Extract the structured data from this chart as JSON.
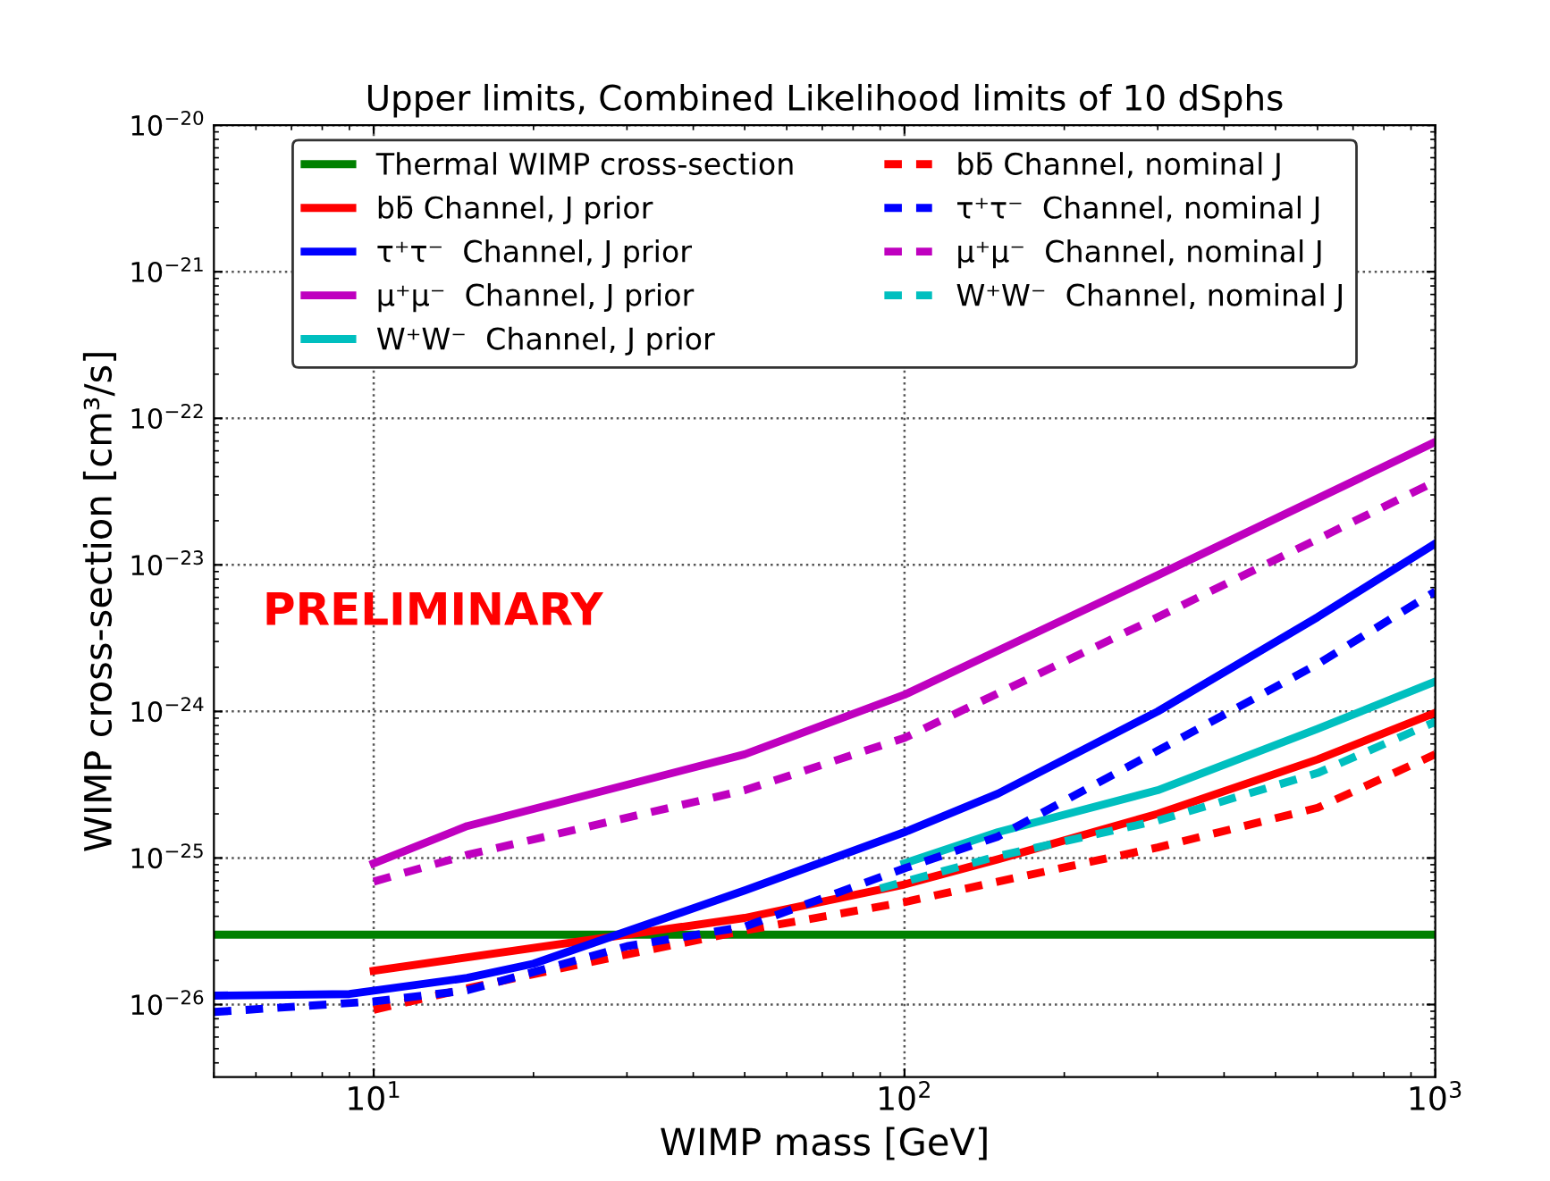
{
  "chart_data": {
    "type": "line",
    "title": "Upper limits, Combined Likelihood limits of 10 dSphs",
    "xlabel": "WIMP mass [GeV]",
    "ylabel": "WIMP cross-section [cm³/s]",
    "log": "xy",
    "xlim": [
      5,
      1000
    ],
    "ylim": [
      3.2e-27,
      1e-20
    ],
    "xticks": [
      {
        "value": 10,
        "label": "10$^{1}$"
      },
      {
        "value": 100,
        "label": "10$^{2}$"
      },
      {
        "value": 1000,
        "label": "10$^{3}$"
      }
    ],
    "yticks": [
      {
        "value": 1e-26,
        "label": "10$^{−26}$"
      },
      {
        "value": 1e-25,
        "label": "10$^{−25}$"
      },
      {
        "value": 1e-24,
        "label": "10$^{−24}$"
      },
      {
        "value": 1e-23,
        "label": "10$^{−23}$"
      },
      {
        "value": 1e-22,
        "label": "10$^{−22}$"
      },
      {
        "value": 1e-21,
        "label": "10$^{−21}$"
      },
      {
        "value": 1e-20,
        "label": "10$^{−20}$"
      }
    ],
    "grid": true,
    "legend": "top",
    "annotations": [
      "PRELIMINARY"
    ],
    "series": [
      {
        "name": "Thermal WIMP cross-section",
        "color": "#008000",
        "line_style": "solid",
        "x": [
          5,
          1000
        ],
        "values": [
          3e-26,
          3e-26
        ]
      },
      {
        "name": "bb̄ Channel, J prior",
        "color": "#ff0000",
        "line_style": "solid",
        "x": [
          10,
          50,
          100,
          150,
          300,
          600,
          1000
        ],
        "values": [
          1.7e-26,
          3.9e-26,
          6.6e-26,
          9.8e-26,
          2e-25,
          4.7e-25,
          9.8e-25
        ]
      },
      {
        "name": "τ⁺τ⁻  Channel, J prior",
        "color": "#0000ff",
        "line_style": "solid",
        "x": [
          5,
          9,
          15,
          20,
          50,
          100,
          150,
          300,
          600,
          1000
        ],
        "values": [
          1.15e-26,
          1.18e-26,
          1.52e-26,
          1.9e-26,
          6e-26,
          1.5e-25,
          2.75e-25,
          1e-24,
          4.4e-24,
          1.4e-23
        ]
      },
      {
        "name": "μ⁺μ⁻  Channel, J prior",
        "color": "#bf00bf",
        "line_style": "solid",
        "x": [
          10,
          15,
          50,
          100,
          300,
          1000
        ],
        "values": [
          9.2e-26,
          1.65e-25,
          5.1e-25,
          1.3e-24,
          8.5e-24,
          6.9e-23
        ]
      },
      {
        "name": "W⁺W⁻  Channel, J prior",
        "color": "#00bfbf",
        "line_style": "solid",
        "x": [
          100,
          150,
          300,
          600,
          1000
        ],
        "values": [
          9.2e-26,
          1.5e-25,
          2.9e-25,
          7.6e-25,
          1.6e-24
        ]
      },
      {
        "name": "bb̄ Channel, nominal J",
        "color": "#ff0000",
        "line_style": "dashed",
        "x": [
          10,
          15,
          30,
          50,
          100,
          150,
          300,
          600,
          1000
        ],
        "values": [
          9.2e-27,
          1.29e-26,
          2.2e-26,
          3.2e-26,
          5e-26,
          6.9e-26,
          1.18e-25,
          2.2e-25,
          5.1e-25
        ]
      },
      {
        "name": "τ⁺τ⁻  Channel, nominal J",
        "color": "#0000ff",
        "line_style": "dashed",
        "x": [
          5,
          10,
          15,
          30,
          50,
          100,
          150,
          300,
          600,
          1000
        ],
        "values": [
          8.9e-27,
          1.05e-26,
          1.25e-26,
          2.5e-26,
          3.4e-26,
          8.5e-26,
          1.4e-25,
          5.4e-25,
          2.1e-24,
          6.6e-24
        ]
      },
      {
        "name": "μ⁺μ⁻  Channel, nominal J",
        "color": "#bf00bf",
        "line_style": "dashed",
        "x": [
          10,
          15,
          50,
          100,
          300,
          1000
        ],
        "values": [
          6.9e-26,
          1.05e-25,
          2.9e-25,
          6.6e-25,
          4.4e-24,
          3.7e-23
        ]
      },
      {
        "name": "W⁺W⁻  Channel, nominal J",
        "color": "#00bfbf",
        "line_style": "dashed",
        "x": [
          90,
          150,
          300,
          600,
          1000
        ],
        "values": [
          6.2e-26,
          1.03e-25,
          1.8e-25,
          3.8e-25,
          8.5e-25
        ]
      }
    ]
  }
}
